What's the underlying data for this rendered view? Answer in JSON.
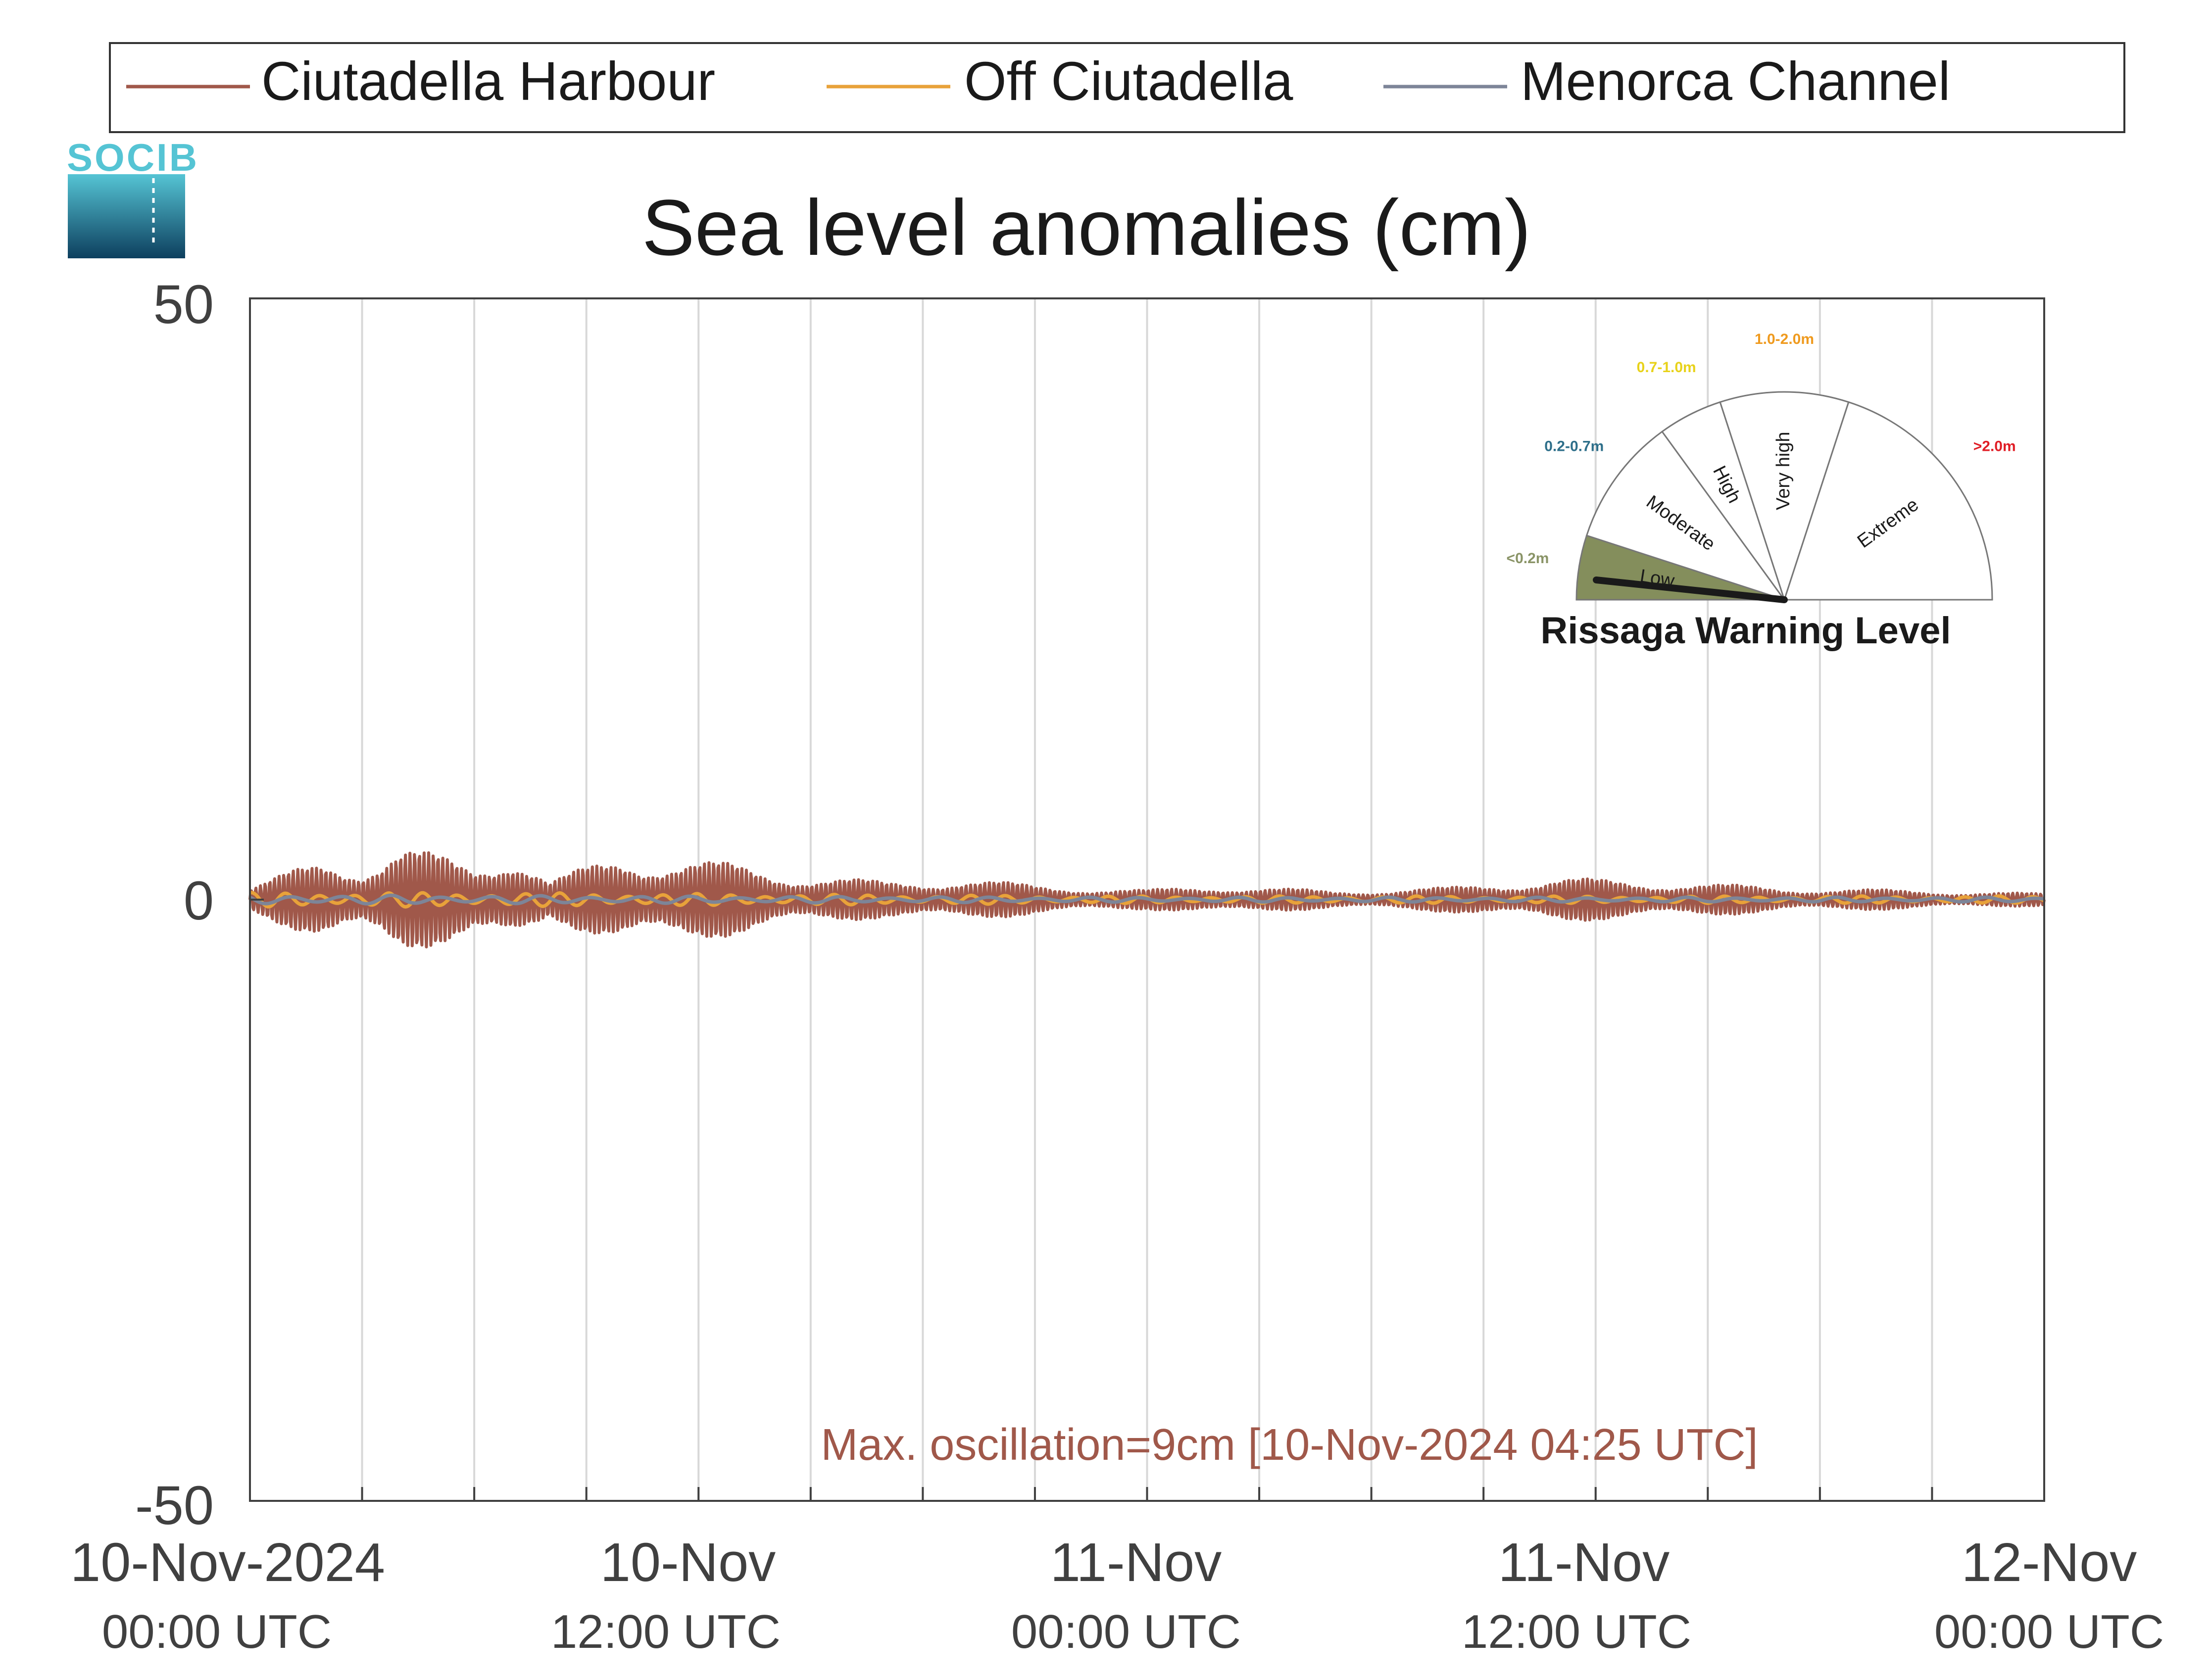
{
  "logo": {
    "text": "SOCIB"
  },
  "colors": {
    "harbour": "#a0584a",
    "off": "#e8a23a",
    "channel": "#7d8598",
    "grid": "#d8d8d8",
    "axis": "#404040",
    "low_sector": "#848e5c",
    "needle": "#1a1a1a"
  },
  "gauge": {
    "title": "Rissaga Warning Level",
    "current_level": "Low",
    "sectors": [
      {
        "label": "Low",
        "range": "<0.2m",
        "range_color": "#8a9467"
      },
      {
        "label": "Moderate",
        "range": "0.2-0.7m",
        "range_color": "#2e6f8a"
      },
      {
        "label": "High",
        "range": "0.7-1.0m",
        "range_color": "#e8d21a"
      },
      {
        "label": "Very high",
        "range": "1.0-2.0m",
        "range_color": "#ef9a1e"
      },
      {
        "label": "Extreme",
        "range": ">2.0m",
        "range_color": "#e01e26"
      }
    ]
  },
  "chart_data": {
    "type": "line",
    "title": "Sea level anomalies (cm)",
    "ylim": [
      -50,
      50
    ],
    "yticks": [
      50,
      0,
      -50
    ],
    "xlim": [
      "2024-11-10T00:00Z",
      "2024-11-12T00:00Z"
    ],
    "xtick_labels": [
      {
        "date": "10-Nov-2024",
        "time": "00:00 UTC"
      },
      {
        "date": "10-Nov",
        "time": "12:00 UTC"
      },
      {
        "date": "11-Nov",
        "time": "00:00 UTC"
      },
      {
        "date": "11-Nov",
        "time": "12:00 UTC"
      },
      {
        "date": "12-Nov",
        "time": "00:00 UTC"
      }
    ],
    "grid": true,
    "legend_position": "top",
    "series": [
      {
        "name": "Ciutadella Harbour",
        "envelope_time": [
          "2024-11-10T00:00Z",
          "2024-11-10T02:00Z",
          "2024-11-10T03:00Z",
          "2024-11-10T04:00Z",
          "2024-11-10T06:00Z",
          "2024-11-10T07:00Z",
          "2024-11-10T08:00Z",
          "2024-11-10T10:00Z",
          "2024-11-10T11:00Z",
          "2024-11-10T13:00Z",
          "2024-11-10T15:00Z",
          "2024-11-10T17:00Z",
          "2024-11-10T19:00Z",
          "2024-11-10T21:00Z",
          "2024-11-11T00:00Z",
          "2024-11-11T02:00Z",
          "2024-11-11T05:00Z",
          "2024-11-11T08:00Z",
          "2024-11-11T11:00Z",
          "2024-11-11T14:00Z",
          "2024-11-11T17:00Z",
          "2024-11-11T20:00Z",
          "2024-11-12T00:00Z"
        ],
        "envelope_amplitude": [
          1.0,
          3.5,
          3.0,
          4.5,
          3.0,
          4.5,
          1.5,
          4.0,
          3.5,
          3.0,
          2.0,
          1.5,
          1.8,
          1.2,
          0.8,
          1.2,
          0.7,
          1.0,
          1.8,
          1.5,
          1.0,
          0.8,
          0.5
        ]
      },
      {
        "name": "Off Ciutadella",
        "envelope_time": [
          "2024-11-10T00:00Z",
          "2024-11-10T06:00Z",
          "2024-11-10T12:00Z",
          "2024-11-11T00:00Z",
          "2024-11-12T00:00Z"
        ],
        "envelope_amplitude": [
          0.6,
          0.6,
          0.5,
          0.3,
          0.3
        ]
      },
      {
        "name": "Menorca Channel",
        "envelope_time": [
          "2024-11-10T00:00Z",
          "2024-11-10T12:00Z",
          "2024-11-11T00:00Z",
          "2024-11-12T00:00Z"
        ],
        "envelope_amplitude": [
          0.4,
          0.3,
          0.2,
          0.2
        ]
      }
    ],
    "annotation": "Max. oscillation=9cm [10-Nov-2024 04:25 UTC]"
  }
}
